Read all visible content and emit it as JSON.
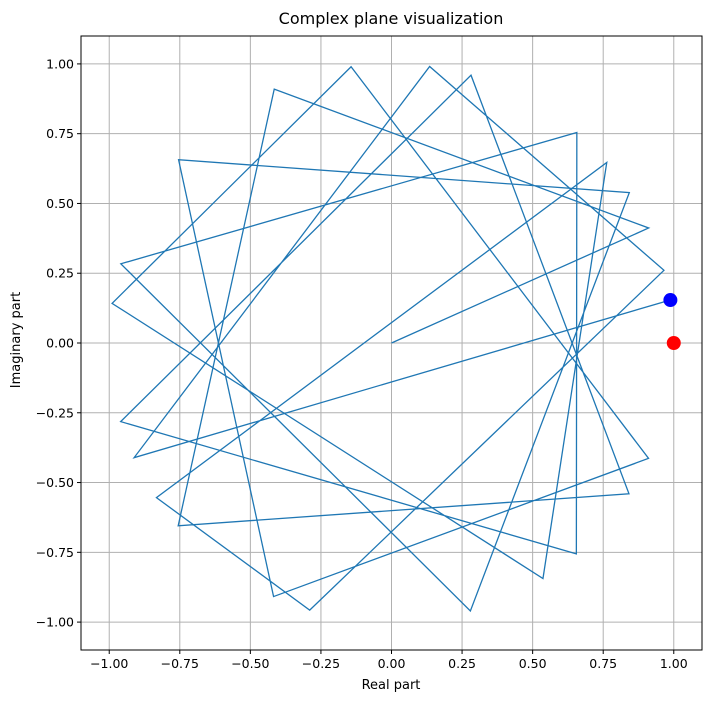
{
  "chart_data": {
    "type": "line",
    "title": "Complex plane visualization",
    "xlabel": "Real part",
    "ylabel": "Imaginary part",
    "xlim": [
      -1.1,
      1.1
    ],
    "ylim": [
      -1.1,
      1.1
    ],
    "grid": true,
    "x_ticks": [
      -1.0,
      -0.75,
      -0.5,
      -0.25,
      0.0,
      0.25,
      0.5,
      0.75,
      1.0
    ],
    "y_ticks": [
      -1.0,
      -0.75,
      -0.5,
      -0.25,
      0.0,
      0.25,
      0.5,
      0.75,
      1.0
    ],
    "x_tick_labels": [
      "−1.00",
      "−0.75",
      "−0.50",
      "−0.25",
      "0.00",
      "0.25",
      "0.50",
      "0.75",
      "1.00"
    ],
    "y_tick_labels": [
      "−1.00",
      "−0.75",
      "−0.50",
      "−0.25",
      "0.00",
      "0.25",
      "0.50",
      "0.75",
      "1.00"
    ],
    "series": [
      {
        "color": "#1f77b4",
        "x": [
          0.0,
          0.9111,
          -0.4154,
          -0.7557,
          0.8413,
          0.2817,
          -0.9595,
          0.6549,
          0.6566,
          -0.9589,
          0.2794,
          0.8425,
          -0.7543,
          -0.4178,
          0.9106,
          -0.1432,
          -0.9899,
          0.5366,
          0.7626,
          -0.8327,
          -0.2898,
          0.9652,
          0.1351,
          -0.9118,
          0.988
        ],
        "y": [
          0.0,
          0.4121,
          0.9096,
          -0.6549,
          -0.5403,
          0.9595,
          -0.2817,
          -0.7557,
          0.7543,
          0.2838,
          -0.9602,
          0.5388,
          0.6566,
          -0.9085,
          -0.4134,
          0.9897,
          0.142,
          -0.8439,
          0.6469,
          -0.554,
          -0.9571,
          0.2604,
          0.9908,
          -0.4108,
          0.1543
        ],
        "points_note": ""
      }
    ],
    "markers": [
      {
        "x": 1.0,
        "y": 0.0,
        "color": "#ff0000"
      },
      {
        "x": 0.988,
        "y": 0.154,
        "color": "#0000ff"
      }
    ]
  }
}
